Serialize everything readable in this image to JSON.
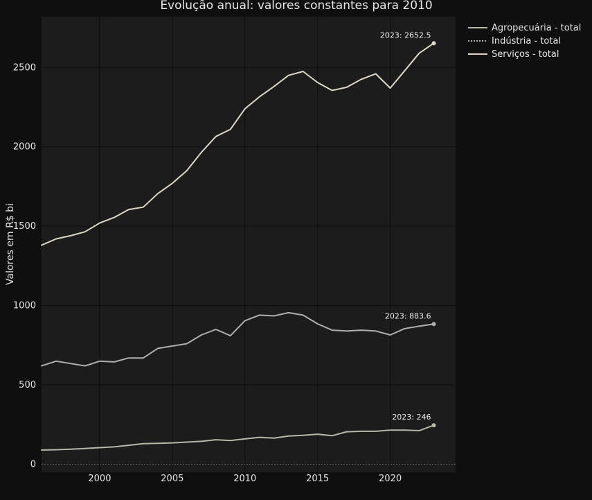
{
  "chart_data": {
    "type": "line",
    "title": "Evolução anual: valores constantes para 2010",
    "xlabel": "",
    "ylabel": "Valores em R$ bi",
    "xlim": [
      1996,
      2024.5
    ],
    "ylim": [
      -50,
      2820
    ],
    "x_ticks": [
      2000,
      2005,
      2010,
      2015,
      2020
    ],
    "y_ticks": [
      0,
      500,
      1000,
      1500,
      2000,
      2500
    ],
    "grid": true,
    "legend_position": "top-right, outside plot",
    "colors": {
      "page_background": "#0f0f0f",
      "plot_background": "#1c1c1c"
    },
    "series": [
      {
        "name": "Agropecuária - total",
        "color": "#b8b8a8",
        "dash": "solid",
        "x": [
          1996,
          1997,
          1998,
          1999,
          2000,
          2001,
          2002,
          2003,
          2004,
          2005,
          2006,
          2007,
          2008,
          2009,
          2010,
          2011,
          2012,
          2013,
          2014,
          2015,
          2016,
          2017,
          2018,
          2019,
          2020,
          2021,
          2022,
          2023
        ],
        "values": [
          90,
          92,
          95,
          100,
          105,
          110,
          120,
          130,
          132,
          135,
          140,
          145,
          155,
          150,
          160,
          170,
          165,
          178,
          183,
          190,
          180,
          205,
          208,
          208,
          215,
          215,
          212,
          246
        ],
        "end_annotation": "2023: 246"
      },
      {
        "name": "Indústria - total",
        "color": "#b0b0b0",
        "dash": "dot",
        "x": [
          1996,
          1997,
          1998,
          1999,
          2000,
          2001,
          2002,
          2003,
          2004,
          2005,
          2006,
          2007,
          2008,
          2009,
          2010,
          2011,
          2012,
          2013,
          2014,
          2015,
          2016,
          2017,
          2018,
          2019,
          2020,
          2021,
          2022,
          2023
        ],
        "values": [
          620,
          650,
          635,
          620,
          650,
          645,
          670,
          670,
          730,
          745,
          760,
          815,
          850,
          810,
          905,
          940,
          935,
          955,
          940,
          885,
          845,
          840,
          845,
          840,
          815,
          855,
          870,
          883.6
        ],
        "end_annotation": "2023: 883.6"
      },
      {
        "name": "Serviços - total",
        "color": "#ddd7ca",
        "dash": "solid",
        "x": [
          1996,
          1997,
          1998,
          1999,
          2000,
          2001,
          2002,
          2003,
          2004,
          2005,
          2006,
          2007,
          2008,
          2009,
          2010,
          2011,
          2012,
          2013,
          2014,
          2015,
          2016,
          2017,
          2018,
          2019,
          2020,
          2021,
          2022,
          2023
        ],
        "values": [
          1380,
          1420,
          1440,
          1465,
          1520,
          1555,
          1605,
          1620,
          1705,
          1770,
          1850,
          1965,
          2065,
          2110,
          2240,
          2315,
          2380,
          2450,
          2475,
          2405,
          2355,
          2375,
          2425,
          2460,
          2370,
          2480,
          2590,
          2652.5
        ],
        "end_annotation": "2023: 2652.5"
      }
    ]
  }
}
